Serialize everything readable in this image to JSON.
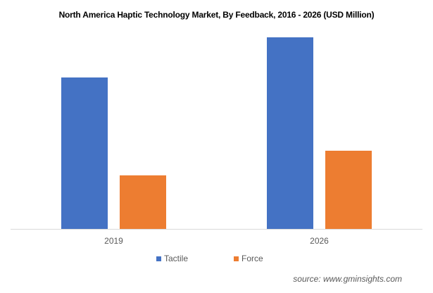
{
  "chart_data": {
    "type": "bar",
    "title": "North America Haptic Technology  Market, By Feedback, 2016 - 2026 (USD Million)",
    "categories": [
      "2019",
      "2026"
    ],
    "series": [
      {
        "name": "Tactile",
        "color": "#4472C4",
        "values": [
          215,
          272
        ]
      },
      {
        "name": "Force",
        "color": "#ED7D31",
        "values": [
          76,
          111
        ]
      }
    ],
    "xlabel": "",
    "ylabel": "",
    "ylim": [
      0,
      300
    ],
    "grid": false,
    "legend": "bottom",
    "note": "values are relative estimates; no y-axis shown"
  },
  "source": "source: www.gminsights.com"
}
